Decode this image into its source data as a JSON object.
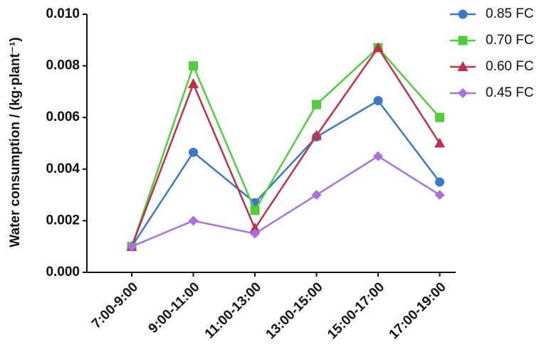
{
  "chart_data": {
    "type": "line",
    "y_label": "Water consumption / (kg·plant⁻¹)",
    "categories": [
      "7:00-9:00",
      "9:00-11:00",
      "11:00-13:00",
      "13:00-15:00",
      "15:00-17:00",
      "17:00-19:00"
    ],
    "series": [
      {
        "name": "0.85 FC",
        "color": "#3a78c9",
        "marker": "circle",
        "values": [
          0.001,
          0.00465,
          0.0027,
          0.00525,
          0.00665,
          0.0035
        ]
      },
      {
        "name": "0.70 FC",
        "color": "#4fcf3c",
        "marker": "square",
        "values": [
          0.001,
          0.008,
          0.0024,
          0.0065,
          0.0087,
          0.006
        ]
      },
      {
        "name": "0.60 FC",
        "color": "#c0304a",
        "marker": "triangle",
        "values": [
          0.001,
          0.0073,
          0.0017,
          0.0053,
          0.0087,
          0.005
        ]
      },
      {
        "name": "0.45 FC",
        "color": "#a672e2",
        "marker": "diamond",
        "values": [
          0.001,
          0.002,
          0.0015,
          0.003,
          0.0045,
          0.003
        ]
      }
    ],
    "ylim": [
      0,
      0.01
    ],
    "yticks": [
      {
        "value": 0,
        "label": "0.000"
      },
      {
        "value": 0.002,
        "label": "0.002"
      },
      {
        "value": 0.004,
        "label": "0.004"
      },
      {
        "value": 0.006,
        "label": "0.006"
      },
      {
        "value": 0.008,
        "label": "0.008"
      },
      {
        "value": 0.01,
        "label": "0.010"
      }
    ],
    "legend": "top-right"
  }
}
